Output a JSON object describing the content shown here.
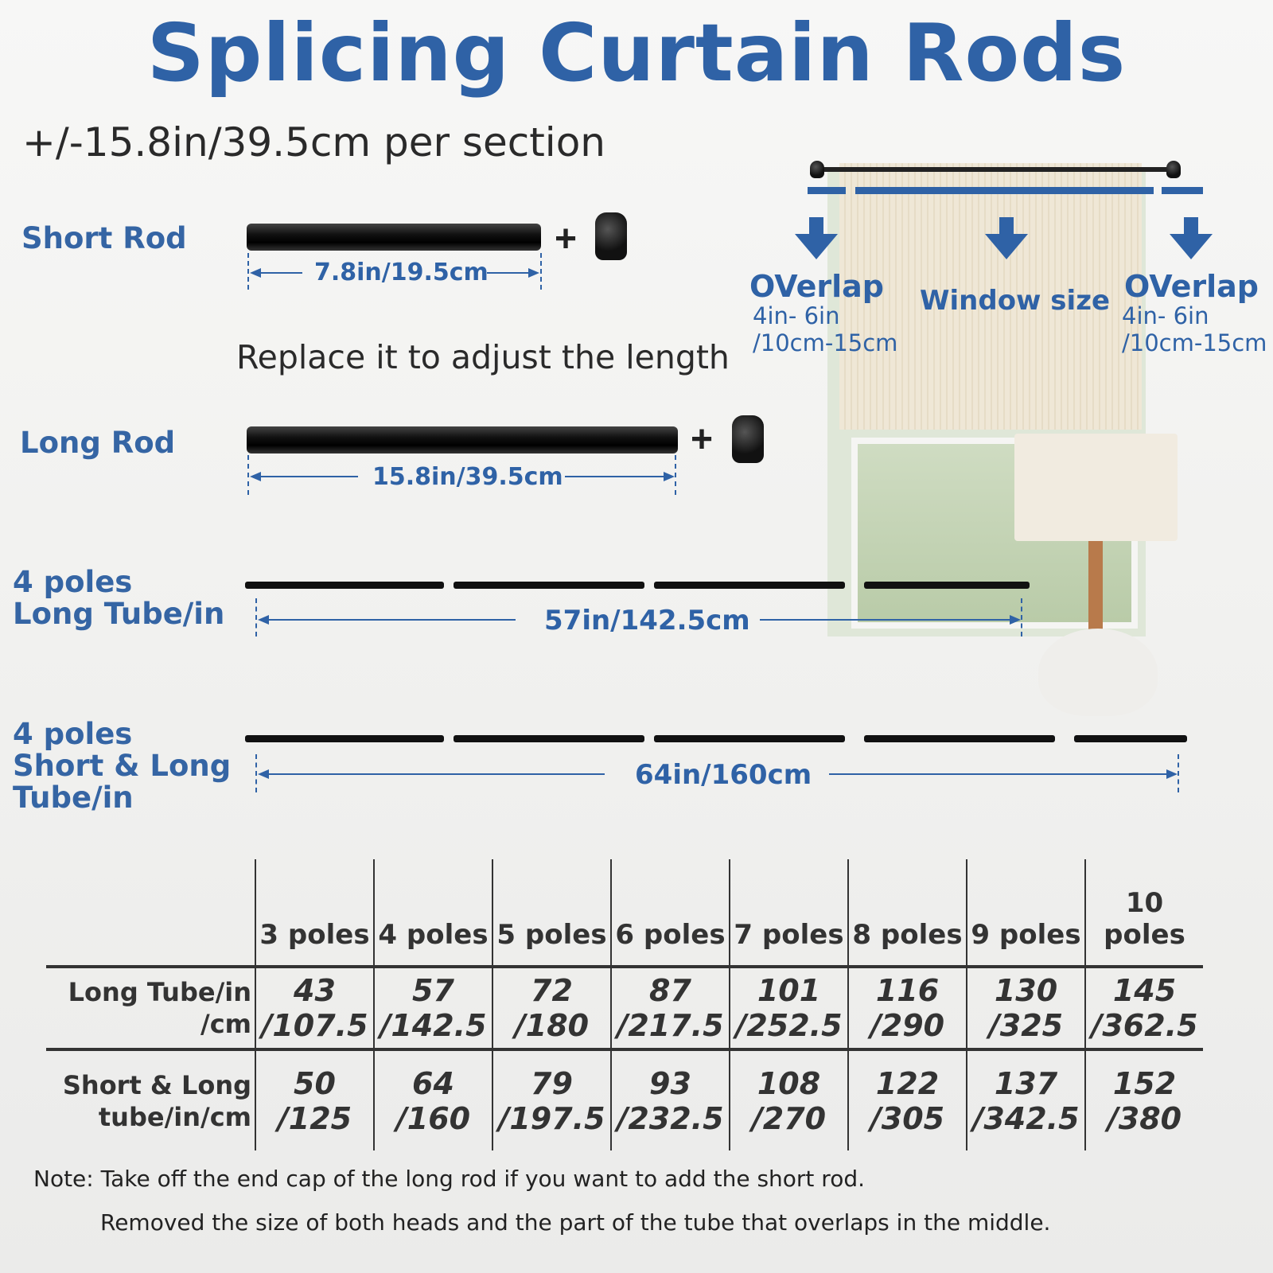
{
  "title": "Splicing Curtain Rods",
  "subtitle": "+/-15.8in/39.5cm per section",
  "short_rod": {
    "label": "Short Rod",
    "dimension": "7.8in/19.5cm",
    "plus": "+"
  },
  "replace_text": "Replace it to adjust the length",
  "long_rod": {
    "label": "Long Rod",
    "dimension": "15.8in/39.5cm",
    "plus": "+"
  },
  "assembly_long": {
    "label_line1": "4 poles",
    "label_line2": "Long Tube/in",
    "dimension": "57in/142.5cm"
  },
  "assembly_short_long": {
    "label_line1": "4 poles",
    "label_line2": "Short & Long",
    "label_line3": "Tube/in",
    "dimension": "64in/160cm"
  },
  "window_diagram": {
    "overlap_left": {
      "title": "OVerlap",
      "line1": "4in- 6in",
      "line2": "/10cm-15cm"
    },
    "center": "Window size",
    "overlap_right": {
      "title": "OVerlap",
      "line1": "4in- 6in",
      "line2": "/10cm-15cm"
    }
  },
  "table": {
    "headers": [
      "3 poles",
      "4 poles",
      "5 poles",
      "6 poles",
      "7 poles",
      "8 poles",
      "9 poles",
      "10 poles"
    ],
    "rows": [
      {
        "label_line1": "Long Tube/in",
        "label_line2": "/cm",
        "cells": [
          [
            "43",
            "/107.5"
          ],
          [
            "57",
            "/142.5"
          ],
          [
            "72",
            "/180"
          ],
          [
            "87",
            "/217.5"
          ],
          [
            "101",
            "/252.5"
          ],
          [
            "116",
            "/290"
          ],
          [
            "130",
            "/325"
          ],
          [
            "145",
            "/362.5"
          ]
        ]
      },
      {
        "label_line1": "Short & Long",
        "label_line2": "tube/in/cm",
        "cells": [
          [
            "50",
            "/125"
          ],
          [
            "64",
            "/160"
          ],
          [
            "79",
            "/197.5"
          ],
          [
            "93",
            "/232.5"
          ],
          [
            "108",
            "/270"
          ],
          [
            "122",
            "/305"
          ],
          [
            "137",
            "/342.5"
          ],
          [
            "152",
            "/380"
          ]
        ]
      }
    ]
  },
  "notes": [
    "Note: Take off the end cap of the long rod if you want to add the short rod.",
    "Removed the size of both heads and the part of the tube that overlaps in the middle."
  ],
  "colors": {
    "accent": "#2f62a6",
    "text": "#333333"
  }
}
